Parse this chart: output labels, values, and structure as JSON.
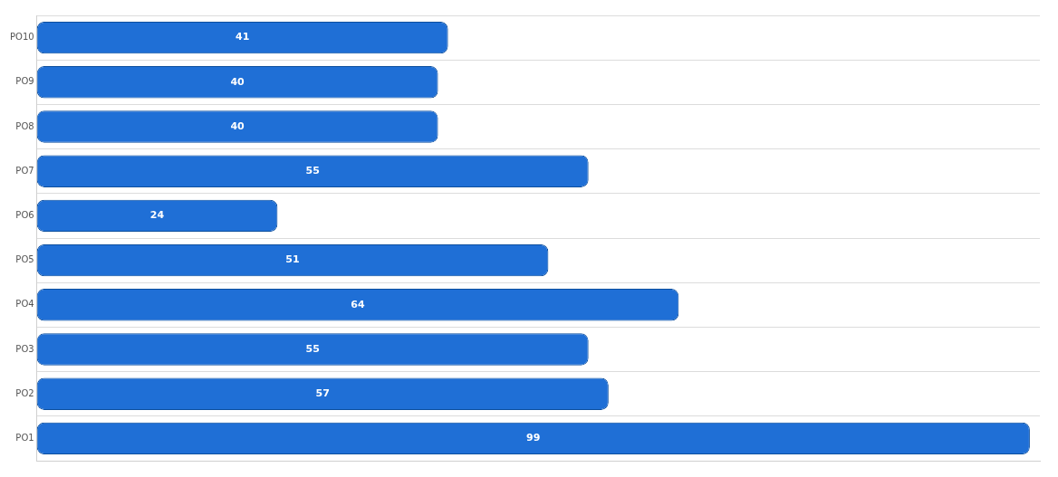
{
  "chart_data": {
    "type": "bar",
    "orientation": "horizontal",
    "categories": [
      "PO10",
      "PO9",
      "PO8",
      "PO7",
      "PO6",
      "PO5",
      "PO4",
      "PO3",
      "PO2",
      "PO1"
    ],
    "values": [
      41,
      40,
      40,
      55,
      24,
      51,
      64,
      55,
      57,
      99
    ],
    "color": "#1f6fd6",
    "xlim": [
      0,
      100
    ],
    "data_labels": true,
    "grid": "y",
    "legend": false,
    "tick_labels": "y"
  }
}
